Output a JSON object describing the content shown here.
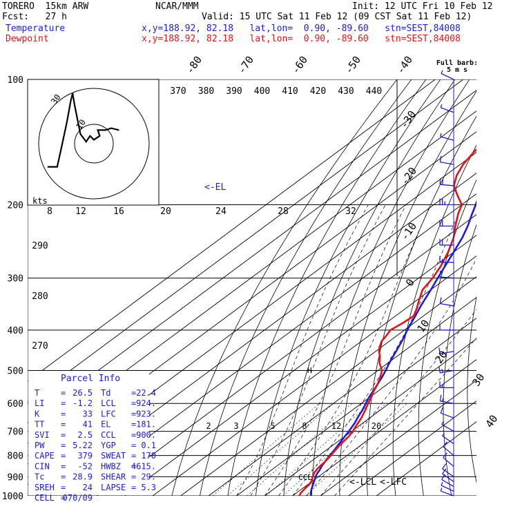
{
  "header": {
    "model": "TORERO  15km ARW",
    "fcst": "Fcst:   27 h",
    "org": "NCAR/MMM",
    "init": "Init: 12 UTC Fri 10 Feb 12",
    "valid": "Valid: 15 UTC Sat 11 Feb 12 (09 CST Sat 11 Feb 12)",
    "temp_label": "Temperature",
    "dew_label": "Dewpoint",
    "temp_loc": "x,y=188.92, 82.18   lat,lon=  0.90, -89.60   stn=SEST,84008",
    "dew_loc": "x,y=188.92, 82.18   lat,lon=  0.90, -89.60   stn=SEST,84008"
  },
  "colors": {
    "temperature": "#1c1cd6",
    "dewpoint": "#e01414",
    "grid": "#000000"
  },
  "barb_legend": {
    "line1": "Full barb:",
    "line2": "5 m s"
  },
  "hodograph": {
    "units": "kts",
    "rings": [
      {
        "speed": 10,
        "label": "10"
      },
      {
        "speed": 30,
        "label": "30"
      }
    ],
    "trace": [
      [
        -48,
        24
      ],
      [
        -38,
        24
      ],
      [
        -34,
        6
      ],
      [
        -28,
        -22
      ],
      [
        -24,
        -44
      ],
      [
        -22,
        -52
      ],
      [
        -20,
        -40
      ],
      [
        -14,
        -10
      ],
      [
        -8,
        -2
      ],
      [
        -4,
        -8
      ],
      [
        0,
        -4
      ],
      [
        6,
        -8
      ],
      [
        4,
        -14
      ],
      [
        12,
        -14
      ],
      [
        18,
        -16
      ],
      [
        26,
        -14
      ]
    ]
  },
  "parcel_info": {
    "title": "Parcel Info",
    "rows": [
      {
        "l1": "T",
        "v1": "26.5",
        "l2": "Td",
        "v2": "22.4"
      },
      {
        "l1": "LI",
        "v1": "-1.2",
        "l2": "LCL",
        "v2": "924."
      },
      {
        "l1": "K",
        "v1": "33",
        "l2": "LFC",
        "v2": "923."
      },
      {
        "l1": "TT",
        "v1": "41",
        "l2": "EL",
        "v2": "181."
      },
      {
        "l1": "SVI",
        "v1": "2.5",
        "l2": "CCL",
        "v2": "900."
      },
      {
        "l1": "PW",
        "v1": "5.22",
        "l2": "YGP",
        "v2": "0.1"
      },
      {
        "l1": "CAPE",
        "v1": "379",
        "l2": "SWEAT",
        "v2": "170"
      },
      {
        "l1": "CIN",
        "v1": "-52",
        "l2": "HWBZ",
        "v2": "4615."
      },
      {
        "l1": "Tc",
        "v1": "28.9",
        "l2": "SHEAR",
        "v2": "29."
      },
      {
        "l1": "SREH",
        "v1": "24",
        "l2": "LAPSE",
        "v2": "5.3"
      },
      {
        "l1": "CELL",
        "v1": "070/09",
        "l2": "",
        "v2": ""
      }
    ]
  },
  "level_markers": {
    "el": "<-EL",
    "lcl": "<-LCL",
    "lfc": "<-LFC",
    "ccl": "CCL",
    "h": "H"
  },
  "chart_data": {
    "type": "line",
    "title": "",
    "xlabel": "",
    "ylabel": "",
    "pressure_levels": [
      100,
      200,
      300,
      400,
      500,
      600,
      700,
      800,
      900,
      1000
    ],
    "pressure_range": [
      1000,
      100
    ],
    "isotherm_labels": [
      -80,
      -70,
      -60,
      -50,
      -40,
      -30,
      -20,
      -10,
      0,
      10,
      20,
      30,
      40
    ],
    "theta_labels": [
      370,
      380,
      390,
      400,
      410,
      420,
      430,
      440
    ],
    "theta_lower_labels": [
      290,
      280,
      270
    ],
    "mixing_ratio_upper_labels": [
      8,
      12,
      16,
      20,
      24,
      28,
      32
    ],
    "mixing_ratio_lower_labels": [
      2,
      3,
      5,
      8,
      12,
      20
    ],
    "series": [
      {
        "name": "Temperature",
        "p": [
          1000,
          985,
          970,
          950,
          930,
          910,
          900,
          880,
          870,
          860,
          850,
          830,
          800,
          780,
          750,
          720,
          700,
          670,
          650,
          620,
          600,
          580,
          550,
          520,
          500,
          480,
          450,
          420,
          400,
          370,
          350,
          320,
          300,
          280,
          260,
          240,
          225,
          210,
          200,
          185,
          170,
          160,
          150,
          140,
          130,
          120,
          110,
          100
        ],
        "t": [
          26.5,
          25.2,
          24.0,
          22.6,
          21.2,
          19.8,
          19.0,
          17.8,
          17.4,
          16.8,
          16.2,
          15.2,
          13.8,
          13.0,
          11.5,
          10.0,
          9.0,
          7.2,
          5.6,
          3.4,
          1.6,
          -0.2,
          -2.6,
          -5.2,
          -7.2,
          -9.5,
          -12.7,
          -16.2,
          -19.0,
          -22.9,
          -25.8,
          -30.0,
          -33.2,
          -36.5,
          -40.0,
          -43.9,
          -47.6,
          -52.0,
          -55.0,
          -60.0,
          -65.0,
          -68.0,
          -72.0,
          -74.0,
          -73.0,
          -72.5,
          -71.0,
          -69.0
        ]
      },
      {
        "name": "Dewpoint",
        "p": [
          1000,
          985,
          970,
          955,
          940,
          920,
          900,
          880,
          860,
          845,
          830,
          800,
          780,
          760,
          740,
          720,
          700,
          680,
          650,
          620,
          600,
          580,
          560,
          540,
          520,
          500,
          480,
          460,
          450,
          440,
          425,
          410,
          400,
          385,
          370,
          355,
          340,
          320,
          300,
          280,
          260,
          240,
          225,
          210,
          200,
          190,
          180,
          170,
          160,
          150,
          140,
          130,
          120,
          110,
          100
        ],
        "t": [
          22.4,
          21.6,
          21.2,
          20.8,
          20.5,
          19.6,
          18.0,
          16.6,
          15.8,
          15.4,
          15.2,
          14.2,
          13.4,
          12.6,
          12.0,
          11.4,
          10.4,
          9.0,
          7.0,
          4.4,
          2.4,
          0.6,
          -1.6,
          -3.4,
          -5.8,
          -8.5,
          -13.0,
          -16.6,
          -18.8,
          -20.6,
          -22.8,
          -24.0,
          -25.0,
          -24.0,
          -23.5,
          -26.0,
          -29.0,
          -33.0,
          -35.0,
          -38.0,
          -42.0,
          -47.0,
          -52.0,
          -57.0,
          -60.0,
          -66.0,
          -72.0,
          -76.0,
          -79.0,
          -81.0,
          -82.5,
          -82.0,
          -80.0,
          -77.0,
          -73.0
        ]
      }
    ],
    "wind_barbs": [
      {
        "p": 1000,
        "dir": 110,
        "spd": 3
      },
      {
        "p": 975,
        "dir": 115,
        "spd": 4
      },
      {
        "p": 950,
        "dir": 120,
        "spd": 5
      },
      {
        "p": 925,
        "dir": 125,
        "spd": 6
      },
      {
        "p": 900,
        "dir": 125,
        "spd": 6
      },
      {
        "p": 850,
        "dir": 130,
        "spd": 6
      },
      {
        "p": 800,
        "dir": 130,
        "spd": 5
      },
      {
        "p": 750,
        "dir": 125,
        "spd": 4
      },
      {
        "p": 700,
        "dir": 120,
        "spd": 4
      },
      {
        "p": 650,
        "dir": 110,
        "spd": 6
      },
      {
        "p": 600,
        "dir": 100,
        "spd": 8
      },
      {
        "p": 550,
        "dir": 90,
        "spd": 9
      },
      {
        "p": 500,
        "dir": 80,
        "spd": 8
      },
      {
        "p": 450,
        "dir": 80,
        "spd": 7
      },
      {
        "p": 400,
        "dir": 90,
        "spd": 6
      },
      {
        "p": 350,
        "dir": 100,
        "spd": 5
      },
      {
        "p": 300,
        "dir": 95,
        "spd": 6
      },
      {
        "p": 275,
        "dir": 90,
        "spd": 8
      },
      {
        "p": 250,
        "dir": 90,
        "spd": 10
      },
      {
        "p": 225,
        "dir": 90,
        "spd": 12
      },
      {
        "p": 200,
        "dir": 90,
        "spd": 13
      },
      {
        "p": 180,
        "dir": 95,
        "spd": 10
      },
      {
        "p": 160,
        "dir": 100,
        "spd": 6
      },
      {
        "p": 140,
        "dir": 105,
        "spd": 4
      },
      {
        "p": 120,
        "dir": 110,
        "spd": 3
      },
      {
        "p": 100,
        "dir": 115,
        "spd": 3
      }
    ]
  }
}
